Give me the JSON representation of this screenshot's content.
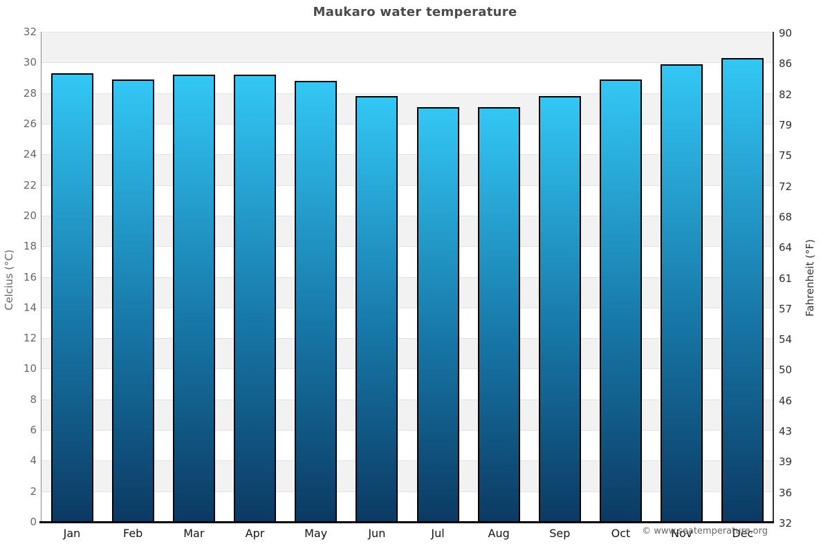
{
  "title": "Maukaro water temperature",
  "footer": {
    "copyright": "© www.seatemperature.org"
  },
  "chart_data": {
    "type": "bar",
    "title": "Maukaro water temperature",
    "categories": [
      "Jan",
      "Feb",
      "Mar",
      "Apr",
      "May",
      "Jun",
      "Jul",
      "Aug",
      "Sep",
      "Oct",
      "Nov",
      "Dec"
    ],
    "values": [
      29.3,
      28.9,
      29.2,
      29.2,
      28.8,
      27.8,
      27.1,
      27.1,
      27.8,
      28.9,
      29.9,
      30.3
    ],
    "value_unit": "°C",
    "xlabel": "",
    "ylabel_left": "Celcius (°C)",
    "ylabel_right": "Fahrenheit (°F)",
    "ylim_celsius": [
      0,
      32
    ],
    "yticks_celsius": [
      32,
      30,
      28,
      26,
      24,
      22,
      20,
      18,
      16,
      14,
      12,
      10,
      8,
      6,
      4,
      2,
      0
    ],
    "yticks_fahrenheit_labels": [
      "90",
      "86",
      "82",
      "79",
      "75",
      "72",
      "68",
      "64",
      "61",
      "57",
      "54",
      "50",
      "46",
      "43",
      "39",
      "36",
      "32"
    ],
    "grid": "horizontal alternating bands every 2°C, gray starting at top (32-30)",
    "legend": "none",
    "colors": {
      "bar_gradient_top": "#33c7f5",
      "bar_gradient_bottom": "#0b3a63",
      "bar_border": "#000000",
      "band_gray": "#f2f2f2",
      "band_white": "#ffffff",
      "gridline": "#e2e2e2",
      "title_text": "#4a4a4a",
      "left_axis_text": "#666666",
      "right_axis_text": "#2e2e2e",
      "month_text": "#141414",
      "footer_text": "#666666"
    }
  }
}
